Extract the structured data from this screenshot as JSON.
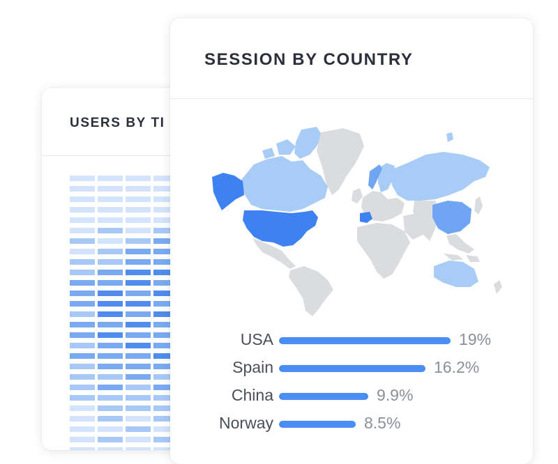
{
  "users_card": {
    "title": "USERS BY TI",
    "heatmap": {
      "columns": 4,
      "intensity": [
        [
          1,
          1,
          1,
          1
        ],
        [
          1,
          1,
          1,
          1
        ],
        [
          1,
          1,
          1,
          1
        ],
        [
          1,
          1,
          1,
          1
        ],
        [
          1,
          1,
          1,
          1
        ],
        [
          1,
          2,
          1,
          2
        ],
        [
          2,
          1,
          2,
          3
        ],
        [
          1,
          2,
          3,
          3
        ],
        [
          2,
          2,
          3,
          3
        ],
        [
          2,
          3,
          4,
          4
        ],
        [
          3,
          3,
          4,
          3
        ],
        [
          3,
          4,
          3,
          4
        ],
        [
          3,
          4,
          4,
          3
        ],
        [
          2,
          4,
          3,
          4
        ],
        [
          3,
          3,
          4,
          3
        ],
        [
          3,
          4,
          3,
          3
        ],
        [
          2,
          3,
          4,
          3
        ],
        [
          3,
          3,
          3,
          4
        ],
        [
          2,
          3,
          3,
          3
        ],
        [
          2,
          2,
          3,
          2
        ],
        [
          2,
          3,
          2,
          3
        ],
        [
          2,
          2,
          2,
          2
        ],
        [
          1,
          2,
          2,
          2
        ],
        [
          1,
          2,
          1,
          2
        ],
        [
          1,
          1,
          2,
          1
        ],
        [
          1,
          2,
          1,
          2
        ],
        [
          1,
          1,
          1,
          1
        ],
        [
          1,
          1,
          1,
          1
        ],
        [
          1,
          1,
          1,
          1
        ],
        [
          1,
          1,
          1,
          1
        ]
      ],
      "colors": {
        "1": "#d3e3fb",
        "2": "#a7c7f7",
        "3": "#79aaf1",
        "4": "#4f8ced"
      }
    }
  },
  "session_card": {
    "title": "SESSION BY COUNTRY",
    "map": {
      "highlighted": [
        "USA",
        "Alaska",
        "China",
        "Spain"
      ],
      "light_highlighted": [
        "Canada",
        "Russia",
        "Australia",
        "Greenland-west",
        "Scandinavia"
      ],
      "colors": {
        "strong": "#3d82f0",
        "medium": "#6fa5f2",
        "light": "#a9ccf7",
        "neutral": "#dadcdf"
      }
    },
    "countries": [
      {
        "name": "USA",
        "value": "19%",
        "percent": 19
      },
      {
        "name": "Spain",
        "value": "16.2%",
        "percent": 16.2
      },
      {
        "name": "China",
        "value": "9.9%",
        "percent": 9.9
      },
      {
        "name": "Norway",
        "value": "8.5%",
        "percent": 8.5
      }
    ]
  }
}
